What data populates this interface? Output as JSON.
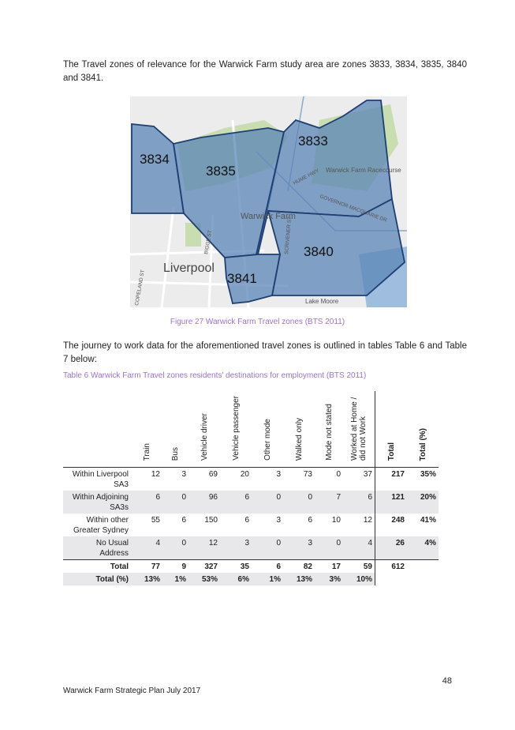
{
  "intro": "The Travel zones of relevance for the Warwick Farm study area are zones 3833, 3834, 3835, 3840 and 3841.",
  "map": {
    "zones": [
      "3833",
      "3834",
      "3835",
      "3840",
      "3841"
    ],
    "places": [
      "Warwick Farm Racecourse",
      "Warwick Farm",
      "Liverpool",
      "Lake Moore"
    ],
    "roads": [
      "HUME HWY",
      "GOVERNOR MACQUARIE DR",
      "BIGGE ST",
      "SCRIVENER ST",
      "COPELAND ST"
    ],
    "colors": {
      "zone_fill": "#5b86b7",
      "zone_border": "#1f3f73",
      "land": "#ececec",
      "park": "#c8ddb0",
      "water": "#9fbedf"
    }
  },
  "figure_caption": "Figure 27 Warwick Farm Travel zones (BTS 2011)",
  "body_text": "The journey to work data for the aforementioned travel zones is outlined in tables Table 6 and Table 7 below:",
  "table_caption": "Table 6 Warwick Farm Travel zones residents' destinations for employment (BTS 2011)",
  "table": {
    "headers": [
      "Train",
      "Bus",
      "Vehicle driver",
      "Vehicle passenger",
      "Other mode",
      "Walked only",
      "Mode not stated",
      "Worked at Home / did not Work",
      "Total",
      "Total (%)"
    ],
    "rows": [
      {
        "label": "Within Liverpool SA3",
        "values": [
          "12",
          "3",
          "69",
          "20",
          "3",
          "73",
          "0",
          "37",
          "217",
          "35%"
        ]
      },
      {
        "label": "Within Adjoining SA3s",
        "values": [
          "6",
          "0",
          "96",
          "6",
          "0",
          "0",
          "7",
          "6",
          "121",
          "20%"
        ]
      },
      {
        "label": "Within other Greater Sydney",
        "values": [
          "55",
          "6",
          "150",
          "6",
          "3",
          "6",
          "10",
          "12",
          "248",
          "41%"
        ]
      },
      {
        "label": "No Usual Address",
        "values": [
          "4",
          "0",
          "12",
          "3",
          "0",
          "3",
          "0",
          "4",
          "26",
          "4%"
        ]
      }
    ],
    "total_row": {
      "label": "Total",
      "values": [
        "77",
        "9",
        "327",
        "35",
        "6",
        "82",
        "17",
        "59",
        "612",
        ""
      ]
    },
    "pct_row": {
      "label": "Total (%)",
      "values": [
        "13%",
        "1%",
        "53%",
        "6%",
        "1%",
        "13%",
        "3%",
        "10%"
      ]
    }
  },
  "footer": "Warwick Farm Strategic Plan July 2017",
  "page_number": "48"
}
